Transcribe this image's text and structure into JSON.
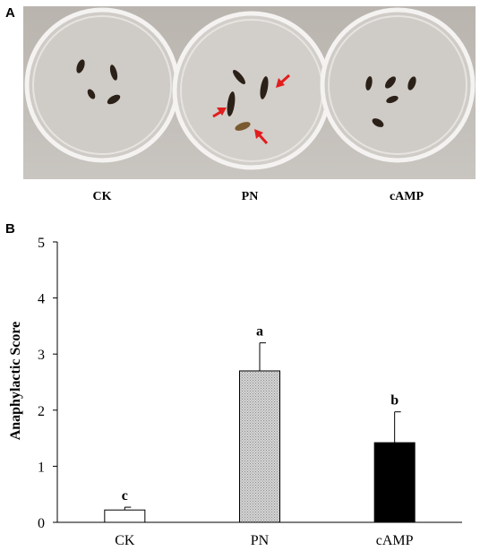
{
  "panel_a": {
    "letter": "A",
    "conditions": [
      "CK",
      "PN",
      "cAMP"
    ],
    "photo_colors": {
      "background": "#bdb8b3",
      "dish_rim": "#f2f1ef",
      "worm": "#2b2118",
      "worm_tan": "#7a5a30",
      "arrow": "#e11d1d"
    }
  },
  "panel_b": {
    "letter": "B"
  },
  "chart_data": {
    "type": "bar",
    "categories": [
      "CK",
      "PN",
      "cAMP"
    ],
    "values": [
      0.22,
      2.7,
      1.42
    ],
    "errors": [
      0.05,
      0.5,
      0.55
    ],
    "significance": [
      "c",
      "a",
      "b"
    ],
    "bar_fills": [
      "#ffffff",
      "#c8c8c8",
      "#000000"
    ],
    "ylabel": "Anaphylactic Score",
    "xlabel": "",
    "ylim": [
      0,
      5
    ],
    "yticks": [
      0,
      1,
      2,
      3,
      4,
      5
    ],
    "grid": false,
    "legend": "none"
  }
}
